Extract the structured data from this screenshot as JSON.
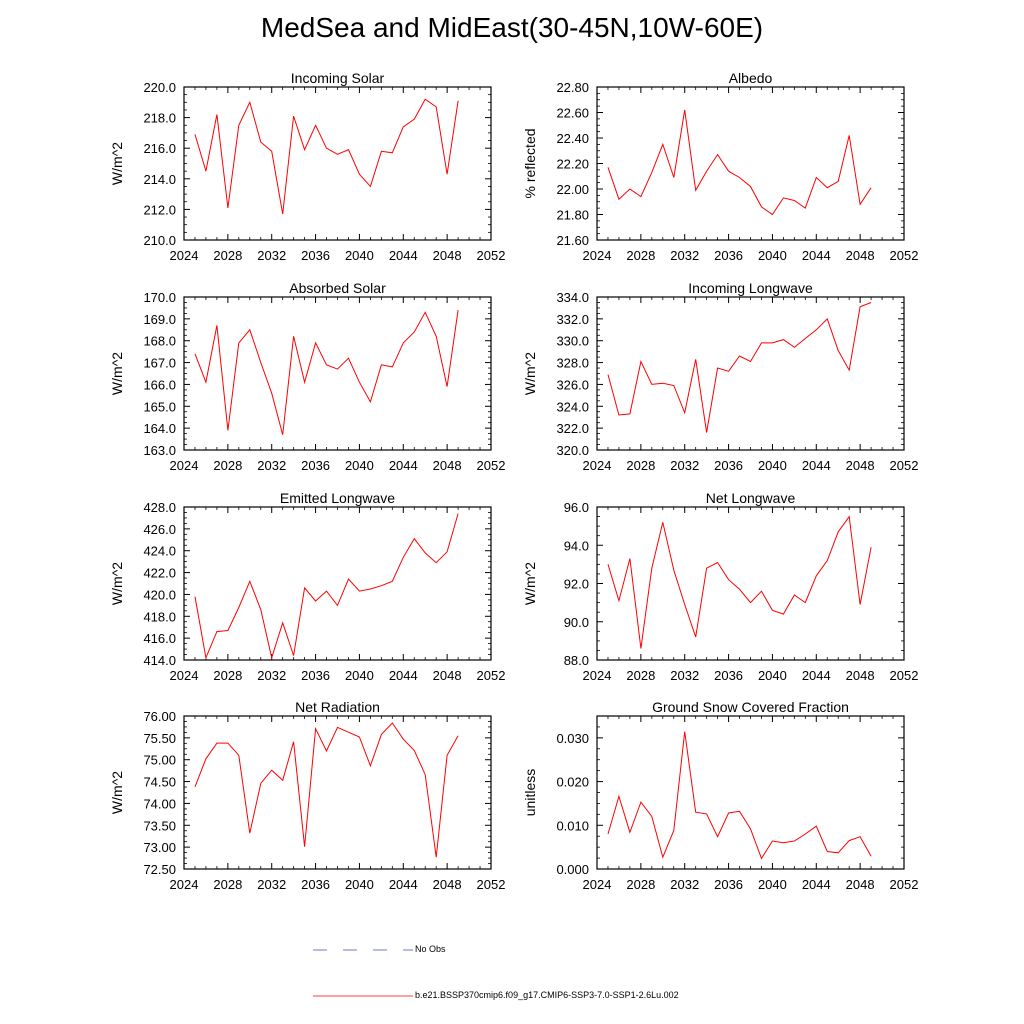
{
  "title": "MedSea and MidEast(30-45N,10W-60E)",
  "legend": {
    "items": [
      {
        "label": "No Obs",
        "color": "#3b4fa8",
        "style": "dashed"
      },
      {
        "label": "b.e21.BSSP370cmip6.f09_g17.CMIP6-SSP3-7.0-SSP1-2.6Lu.002",
        "color": "#ff0000",
        "style": "solid"
      }
    ]
  },
  "chart_data": [
    {
      "type": "line",
      "title": "Incoming Solar",
      "ylabel": "W/m^2",
      "xlim": [
        2024,
        2052
      ],
      "xticks": [
        2024,
        2028,
        2032,
        2036,
        2040,
        2044,
        2048,
        2052
      ],
      "ylim": [
        210,
        220
      ],
      "yticks": [
        "210.0",
        "212.0",
        "214.0",
        "216.0",
        "218.0",
        "220.0"
      ],
      "ytick_values": [
        210,
        212,
        214,
        216,
        218,
        220
      ],
      "series": [
        {
          "color": "#ff0000",
          "x": [
            2025,
            2026,
            2027,
            2028,
            2029,
            2030,
            2031,
            2032,
            2033,
            2034,
            2035,
            2036,
            2037,
            2038,
            2039,
            2040,
            2041,
            2042,
            2043,
            2044,
            2045,
            2046,
            2047,
            2048,
            2049
          ],
          "y": [
            216.9,
            214.5,
            218.2,
            212.1,
            217.5,
            219.0,
            216.4,
            215.8,
            211.7,
            218.1,
            215.9,
            217.5,
            216.0,
            215.6,
            215.9,
            214.3,
            213.5,
            215.8,
            215.7,
            217.4,
            217.9,
            219.2,
            218.7,
            214.3,
            219.1
          ]
        }
      ]
    },
    {
      "type": "line",
      "title": "Albedo",
      "ylabel": "% reflected",
      "xlim": [
        2024,
        2052
      ],
      "xticks": [
        2024,
        2028,
        2032,
        2036,
        2040,
        2044,
        2048,
        2052
      ],
      "ylim": [
        21.6,
        22.8
      ],
      "yticks": [
        "21.60",
        "21.80",
        "22.00",
        "22.20",
        "22.40",
        "22.60",
        "22.80"
      ],
      "ytick_values": [
        21.6,
        21.8,
        22.0,
        22.2,
        22.4,
        22.6,
        22.8
      ],
      "series": [
        {
          "color": "#ff0000",
          "x": [
            2025,
            2026,
            2027,
            2028,
            2029,
            2030,
            2031,
            2032,
            2033,
            2034,
            2035,
            2036,
            2037,
            2038,
            2039,
            2040,
            2041,
            2042,
            2043,
            2044,
            2045,
            2046,
            2047,
            2048,
            2049
          ],
          "y": [
            22.17,
            21.92,
            22.0,
            21.94,
            22.13,
            22.35,
            22.09,
            22.62,
            21.99,
            22.14,
            22.27,
            22.14,
            22.09,
            22.02,
            21.86,
            21.8,
            21.93,
            21.91,
            21.85,
            22.09,
            22.01,
            22.06,
            22.42,
            21.88,
            22.01
          ]
        }
      ]
    },
    {
      "type": "line",
      "title": "Absorbed Solar",
      "ylabel": "W/m^2",
      "xlim": [
        2024,
        2052
      ],
      "xticks": [
        2024,
        2028,
        2032,
        2036,
        2040,
        2044,
        2048,
        2052
      ],
      "ylim": [
        163,
        170
      ],
      "yticks": [
        "163.0",
        "164.0",
        "165.0",
        "166.0",
        "167.0",
        "168.0",
        "169.0",
        "170.0"
      ],
      "ytick_values": [
        163,
        164,
        165,
        166,
        167,
        168,
        169,
        170
      ],
      "series": [
        {
          "color": "#ff0000",
          "x": [
            2025,
            2026,
            2027,
            2028,
            2029,
            2030,
            2031,
            2032,
            2033,
            2034,
            2035,
            2036,
            2037,
            2038,
            2039,
            2040,
            2041,
            2042,
            2043,
            2044,
            2045,
            2046,
            2047,
            2048,
            2049
          ],
          "y": [
            167.4,
            166.1,
            168.7,
            163.9,
            167.9,
            168.5,
            167.0,
            165.6,
            163.7,
            168.2,
            166.1,
            167.9,
            166.9,
            166.7,
            167.2,
            166.1,
            165.2,
            166.9,
            166.8,
            167.9,
            168.4,
            169.3,
            168.2,
            165.9,
            169.4
          ]
        }
      ]
    },
    {
      "type": "line",
      "title": "Incoming Longwave",
      "ylabel": "W/m^2",
      "xlim": [
        2024,
        2052
      ],
      "xticks": [
        2024,
        2028,
        2032,
        2036,
        2040,
        2044,
        2048,
        2052
      ],
      "ylim": [
        320,
        334
      ],
      "yticks": [
        "320.0",
        "322.0",
        "324.0",
        "326.0",
        "328.0",
        "330.0",
        "332.0",
        "334.0"
      ],
      "ytick_values": [
        320,
        322,
        324,
        326,
        328,
        330,
        332,
        334
      ],
      "series": [
        {
          "color": "#ff0000",
          "x": [
            2025,
            2026,
            2027,
            2028,
            2029,
            2030,
            2031,
            2032,
            2033,
            2034,
            2035,
            2036,
            2037,
            2038,
            2039,
            2040,
            2041,
            2042,
            2043,
            2044,
            2045,
            2046,
            2047,
            2048,
            2049
          ],
          "y": [
            326.9,
            323.2,
            323.3,
            328.1,
            326.0,
            326.1,
            325.9,
            323.4,
            328.3,
            321.6,
            327.5,
            327.2,
            328.6,
            328.1,
            329.8,
            329.8,
            330.1,
            329.4,
            330.2,
            331.0,
            332.0,
            329.1,
            327.3,
            333.1,
            333.5
          ]
        }
      ]
    },
    {
      "type": "line",
      "title": "Emitted Longwave",
      "ylabel": "W/m^2",
      "xlim": [
        2024,
        2052
      ],
      "xticks": [
        2024,
        2028,
        2032,
        2036,
        2040,
        2044,
        2048,
        2052
      ],
      "ylim": [
        414,
        428
      ],
      "yticks": [
        "414.0",
        "416.0",
        "418.0",
        "420.0",
        "422.0",
        "424.0",
        "426.0",
        "428.0"
      ],
      "ytick_values": [
        414,
        416,
        418,
        420,
        422,
        424,
        426,
        428
      ],
      "series": [
        {
          "color": "#ff0000",
          "x": [
            2025,
            2026,
            2027,
            2028,
            2029,
            2030,
            2031,
            2032,
            2033,
            2034,
            2035,
            2036,
            2037,
            2038,
            2039,
            2040,
            2041,
            2042,
            2043,
            2044,
            2045,
            2046,
            2047,
            2048,
            2049
          ],
          "y": [
            419.8,
            414.2,
            416.6,
            416.7,
            418.8,
            421.2,
            418.6,
            414.2,
            417.4,
            414.4,
            420.6,
            419.4,
            420.3,
            419.0,
            421.4,
            420.3,
            420.5,
            420.8,
            421.2,
            423.4,
            425.1,
            423.8,
            422.9,
            423.9,
            427.4
          ]
        }
      ]
    },
    {
      "type": "line",
      "title": "Net Longwave",
      "ylabel": "W/m^2",
      "xlim": [
        2024,
        2052
      ],
      "xticks": [
        2024,
        2028,
        2032,
        2036,
        2040,
        2044,
        2048,
        2052
      ],
      "ylim": [
        88,
        96
      ],
      "yticks": [
        "88.0",
        "90.0",
        "92.0",
        "94.0",
        "96.0"
      ],
      "ytick_values": [
        88,
        90,
        92,
        94,
        96
      ],
      "series": [
        {
          "color": "#ff0000",
          "x": [
            2025,
            2026,
            2027,
            2028,
            2029,
            2030,
            2031,
            2032,
            2033,
            2034,
            2035,
            2036,
            2037,
            2038,
            2039,
            2040,
            2041,
            2042,
            2043,
            2044,
            2045,
            2046,
            2047,
            2048,
            2049
          ],
          "y": [
            93.0,
            91.1,
            93.3,
            88.6,
            92.8,
            95.2,
            92.7,
            90.9,
            89.2,
            92.8,
            93.1,
            92.2,
            91.7,
            91.0,
            91.6,
            90.6,
            90.4,
            91.4,
            91.0,
            92.4,
            93.2,
            94.7,
            95.5,
            90.9,
            93.9
          ]
        }
      ]
    },
    {
      "type": "line",
      "title": "Net Radiation",
      "ylabel": "W/m^2",
      "xlim": [
        2024,
        2052
      ],
      "xticks": [
        2024,
        2028,
        2032,
        2036,
        2040,
        2044,
        2048,
        2052
      ],
      "ylim": [
        72.5,
        76
      ],
      "yticks": [
        "72.50",
        "73.00",
        "73.50",
        "74.00",
        "74.50",
        "75.00",
        "75.50",
        "76.00"
      ],
      "ytick_values": [
        72.5,
        73.0,
        73.5,
        74.0,
        74.5,
        75.0,
        75.5,
        76.0
      ],
      "series": [
        {
          "color": "#ff0000",
          "x": [
            2025,
            2026,
            2027,
            2028,
            2029,
            2030,
            2031,
            2032,
            2033,
            2034,
            2035,
            2036,
            2037,
            2038,
            2039,
            2040,
            2041,
            2042,
            2043,
            2044,
            2045,
            2046,
            2047,
            2048,
            2049
          ],
          "y": [
            74.38,
            75.02,
            75.38,
            75.38,
            75.1,
            73.32,
            74.46,
            74.76,
            74.53,
            75.41,
            73.01,
            75.71,
            75.2,
            75.74,
            75.63,
            75.52,
            74.86,
            75.58,
            75.84,
            75.47,
            75.21,
            74.66,
            72.77,
            75.1,
            75.55
          ]
        }
      ]
    },
    {
      "type": "line",
      "title": "Ground Snow Covered Fraction",
      "ylabel": "unitless",
      "xlim": [
        2024,
        2052
      ],
      "xticks": [
        2024,
        2028,
        2032,
        2036,
        2040,
        2044,
        2048,
        2052
      ],
      "ylim": [
        0,
        0.035
      ],
      "yticks": [
        "0.000",
        "0.010",
        "0.020",
        "0.030"
      ],
      "ytick_values": [
        0,
        0.01,
        0.02,
        0.03
      ],
      "series": [
        {
          "color": "#ff0000",
          "x": [
            2025,
            2026,
            2027,
            2028,
            2029,
            2030,
            2031,
            2032,
            2033,
            2034,
            2035,
            2036,
            2037,
            2038,
            2039,
            2040,
            2041,
            2042,
            2043,
            2044,
            2045,
            2046,
            2047,
            2048,
            2049
          ],
          "y": [
            0.008,
            0.0166,
            0.0084,
            0.0153,
            0.012,
            0.0027,
            0.0088,
            0.0314,
            0.013,
            0.0126,
            0.0074,
            0.0128,
            0.0132,
            0.0092,
            0.0024,
            0.0064,
            0.006,
            0.0064,
            0.008,
            0.0098,
            0.004,
            0.0037,
            0.0065,
            0.0074,
            0.0029
          ]
        }
      ]
    }
  ]
}
